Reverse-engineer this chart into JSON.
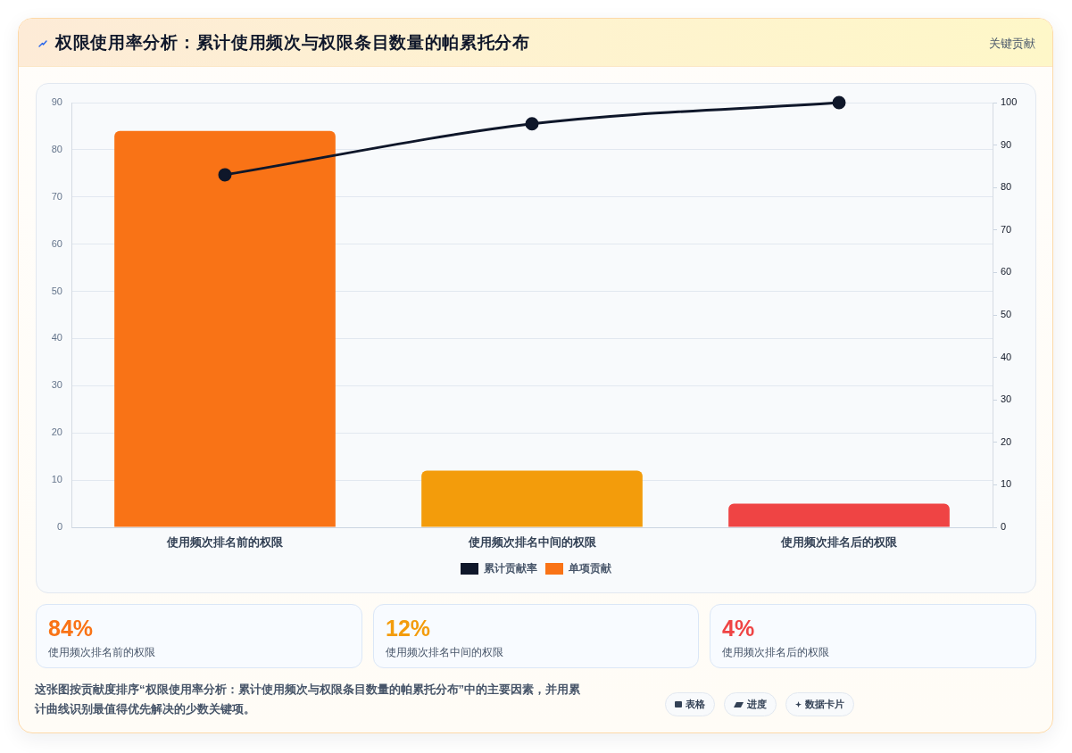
{
  "chart_data": [
    {
      "type": "bar",
      "title": "权限使用率分析：累计使用频次与权限条目数量的帕累托分布",
      "categories": [
        "使用频次排名前的权限",
        "使用频次排名中间的权限",
        "使用频次排名后的权限"
      ],
      "series": [
        {
          "name": "累计贡献率",
          "type": "line",
          "axis": "y2",
          "color": "#0f172a",
          "values": [
            83,
            95,
            100
          ]
        },
        {
          "name": "单项贡献",
          "type": "bar",
          "color": "#f97316",
          "colors": [
            "#f97316",
            "#f39c0b",
            "#ef4444"
          ],
          "values": [
            84,
            12,
            5
          ]
        }
      ],
      "ylim": [
        0,
        90
      ],
      "yticks": [
        0,
        10,
        20,
        30,
        40,
        50,
        60,
        70,
        80,
        90
      ],
      "y2lim": [
        0,
        100
      ],
      "y2ticks": [
        0,
        10,
        20,
        30,
        40,
        50,
        60,
        70,
        80,
        90,
        100
      ],
      "grid": "y",
      "legend": "bottom",
      "marker": "circle",
      "line_style": "solid",
      "annotations": [
        "关键贡献"
      ]
    },
    {
      "type": "other",
      "categories": [
        "使用频次排名前的权限",
        "使用频次排名中间的权限",
        "使用频次排名后的权限"
      ],
      "value_labels": [
        "84%",
        "12%",
        "4%"
      ],
      "annotations": [
        "这张图按贡献度排序“权限使用率分析：累计使用频次与权限条目数量的帕累托分布”中的主要因素，并用累计曲线识别最值得优先解决的少数关键项。",
        "表格",
        "进度",
        "数据卡片"
      ]
    }
  ]
}
